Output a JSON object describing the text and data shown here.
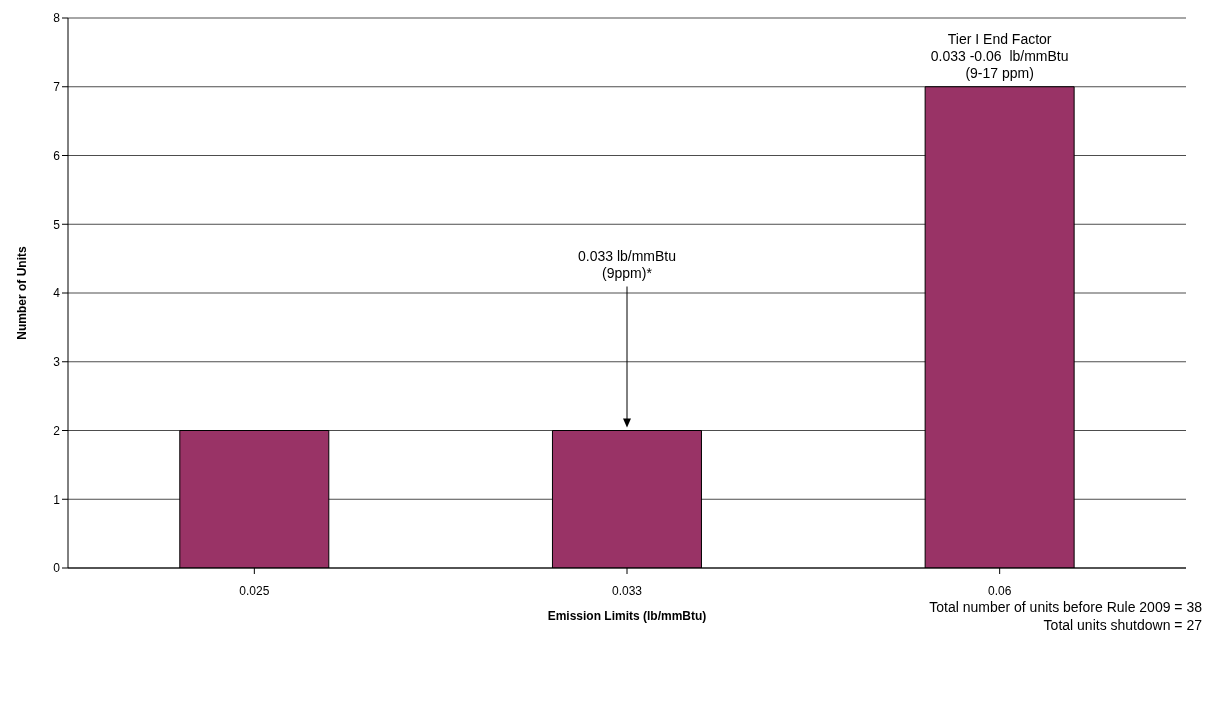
{
  "chart_data": {
    "type": "bar",
    "xlabel": "Emission Limits (lb/mmBtu)",
    "ylabel": "Number of Units",
    "categories": [
      "0.025",
      "0.033",
      "0.06"
    ],
    "values": [
      2,
      2,
      7
    ],
    "color": "#993366",
    "ylim": [
      0,
      8
    ],
    "yticks": [
      0,
      1,
      2,
      3,
      4,
      5,
      6,
      7,
      8
    ],
    "grid": "y",
    "annotations": [
      "0.033 lb/mmBtu\n(9ppm)*",
      {
        "text": "Tier I End Factor\n0.033 -0.06  lb/mmBtu\n(9-17 ppm)",
        "x": "0.06",
        "y": 7
      },
      "Total number of units before Rule 2009 = 38",
      "Total units shutdown = 27"
    ]
  }
}
